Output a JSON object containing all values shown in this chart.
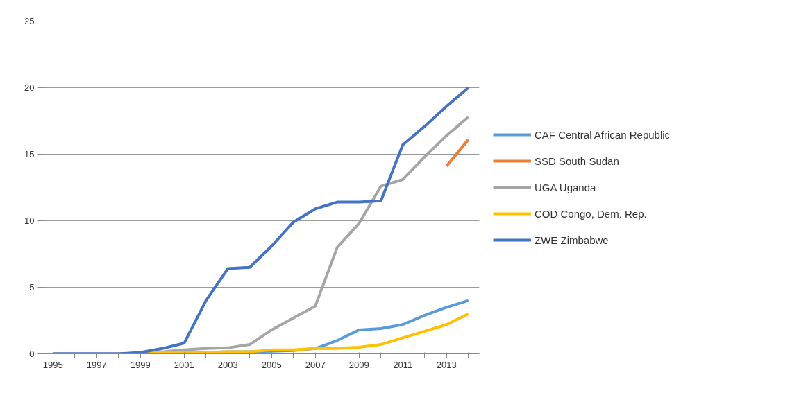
{
  "chart_data": {
    "type": "line",
    "categories": [
      "1995",
      null,
      "1997",
      null,
      "1999",
      null,
      "2001",
      null,
      "2003",
      null,
      "2005",
      null,
      "2007",
      null,
      "2009",
      null,
      "2011",
      null,
      "2013",
      null
    ],
    "series": [
      {
        "name": "CAF Central African Republic",
        "color": "#5b9bd5",
        "values": [
          0,
          0,
          0,
          0,
          0.05,
          0.1,
          0.1,
          0.1,
          0.15,
          0.15,
          0.2,
          0.25,
          0.4,
          1.0,
          1.8,
          1.9,
          2.2,
          2.9,
          3.5,
          4.0
        ]
      },
      {
        "name": "SSD South Sudan",
        "color": "#ed7d31",
        "values": [
          null,
          null,
          null,
          null,
          null,
          null,
          null,
          null,
          null,
          null,
          null,
          null,
          null,
          null,
          null,
          null,
          null,
          null,
          14.1,
          16.1
        ]
      },
      {
        "name": "UGA Uganda",
        "color": "#a5a5a5",
        "values": [
          0,
          0,
          0,
          0,
          0.05,
          0.15,
          0.3,
          0.4,
          0.45,
          0.7,
          1.8,
          2.7,
          3.6,
          8.0,
          9.8,
          12.6,
          13.1,
          14.8,
          16.4,
          17.8
        ]
      },
      {
        "name": "COD Congo, Dem. Rep.",
        "color": "#ffc000",
        "values": [
          null,
          null,
          null,
          0,
          0.05,
          0.1,
          0.1,
          0.1,
          0.15,
          0.15,
          0.3,
          0.3,
          0.4,
          0.4,
          0.5,
          0.7,
          1.2,
          1.7,
          2.2,
          3.0
        ]
      },
      {
        "name": "ZWE Zimbabwe",
        "color": "#4472c4",
        "values": [
          0,
          0,
          0,
          0,
          0.1,
          0.4,
          0.8,
          4.0,
          6.4,
          6.5,
          8.1,
          9.9,
          10.9,
          11.4,
          11.4,
          11.5,
          15.7,
          17.1,
          18.6,
          20.0
        ]
      }
    ],
    "ylim": [
      0,
      25
    ],
    "yticks": [
      0,
      5,
      10,
      15,
      20,
      25
    ],
    "grid": "y",
    "legend": "right",
    "line_style": "solid"
  }
}
